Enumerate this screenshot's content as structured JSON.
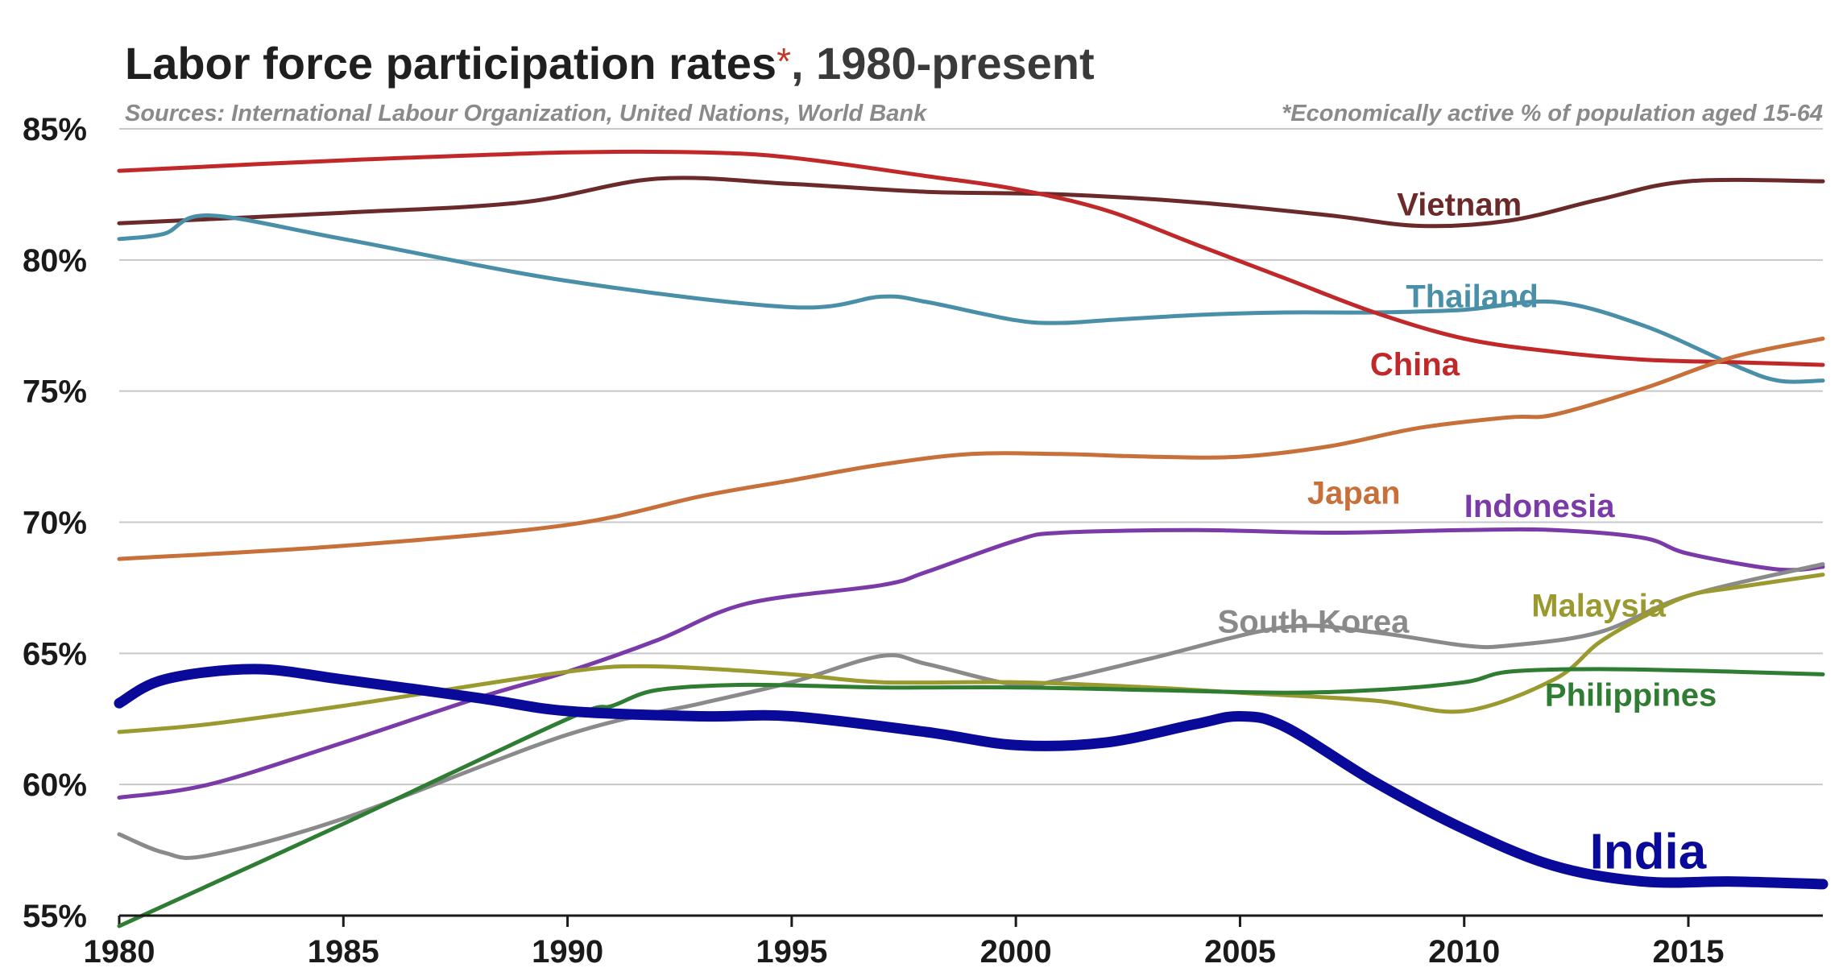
{
  "chart_data": {
    "type": "line",
    "title": "Labor force participation rates",
    "title_mark": "*",
    "title_suffix": ", 1980-present",
    "source_note": "Sources:  International Labour Organization, United Nations, World Bank",
    "footnote": "*Economically active % of population aged 15-64",
    "y_tick_labels": [
      "85%",
      "80%",
      "75%",
      "70%",
      "65%",
      "60%",
      "55%"
    ],
    "y_ticks": [
      85,
      80,
      75,
      70,
      65,
      60,
      55
    ],
    "ylim": [
      55,
      85
    ],
    "xlim": [
      1980,
      2018
    ],
    "x_ticks": [
      1980,
      1985,
      1990,
      1995,
      2000,
      2005,
      2010,
      2015
    ],
    "x_tick_labels": [
      "1980",
      "1985",
      "1990",
      "1995",
      "2000",
      "2005",
      "2010",
      "2015"
    ],
    "grid": true,
    "series": [
      {
        "name": "Vietnam",
        "color": "#6b2a2a",
        "x": [
          1980,
          1985,
          1989,
          1992,
          1995,
          1998,
          2001,
          2004,
          2007,
          2009,
          2011,
          2013,
          2015,
          2018
        ],
        "y": [
          81.4,
          81.8,
          82.2,
          83.1,
          82.9,
          82.6,
          82.5,
          82.2,
          81.7,
          81.3,
          81.5,
          82.3,
          83.0,
          83.0
        ]
      },
      {
        "name": "Thailand",
        "color": "#4a8fa8",
        "x": [
          1980,
          1981,
          1982,
          1985,
          1990,
          1995,
          1997,
          1998,
          2000,
          2001,
          2002,
          2004,
          2006,
          2008,
          2010,
          2012,
          2014,
          2016,
          2017,
          2018
        ],
        "y": [
          80.8,
          81.0,
          81.7,
          80.8,
          79.2,
          78.2,
          78.6,
          78.4,
          77.7,
          77.6,
          77.7,
          77.9,
          78.0,
          78.0,
          78.1,
          78.4,
          77.5,
          76.0,
          75.4,
          75.4
        ]
      },
      {
        "name": "China",
        "color": "#c0282a",
        "x": [
          1980,
          1985,
          1990,
          1993,
          1995,
          1998,
          2000,
          2002,
          2004,
          2006,
          2008,
          2010,
          2012,
          2014,
          2016,
          2018
        ],
        "y": [
          83.4,
          83.8,
          84.1,
          84.1,
          83.9,
          83.2,
          82.7,
          81.9,
          80.6,
          79.3,
          78.0,
          77.0,
          76.5,
          76.2,
          76.1,
          76.0
        ]
      },
      {
        "name": "Japan",
        "color": "#c8703a",
        "x": [
          1980,
          1985,
          1990,
          1993,
          1995,
          1997,
          1999,
          2001,
          2003,
          2005,
          2007,
          2009,
          2011,
          2012,
          2014,
          2016,
          2018
        ],
        "y": [
          68.6,
          69.1,
          69.9,
          71.0,
          71.6,
          72.2,
          72.6,
          72.6,
          72.5,
          72.5,
          72.9,
          73.6,
          74.0,
          74.1,
          75.1,
          76.3,
          77.0
        ]
      },
      {
        "name": "Indonesia",
        "color": "#7a3aa8",
        "x": [
          1980,
          1982,
          1985,
          1988,
          1990,
          1992,
          1994,
          1997,
          1998,
          2000,
          2001,
          2004,
          2007,
          2010,
          2012,
          2014,
          2015,
          2017,
          2018
        ],
        "y": [
          59.5,
          60.0,
          61.6,
          63.3,
          64.3,
          65.5,
          66.9,
          67.6,
          68.1,
          69.3,
          69.6,
          69.7,
          69.6,
          69.7,
          69.7,
          69.4,
          68.8,
          68.2,
          68.3
        ]
      },
      {
        "name": "South Korea",
        "color": "#8a8a8a",
        "x": [
          1980,
          1981,
          1982,
          1985,
          1990,
          1993,
          1995,
          1997,
          1998,
          2000,
          2001,
          2003,
          2006,
          2008,
          2010,
          2011,
          2013,
          2015,
          2018
        ],
        "y": [
          58.1,
          57.4,
          57.3,
          58.7,
          61.9,
          63.1,
          63.9,
          64.9,
          64.6,
          63.8,
          64.0,
          64.8,
          66.0,
          65.8,
          65.3,
          65.3,
          65.8,
          67.2,
          68.4
        ]
      },
      {
        "name": "Malaysia",
        "color": "#9a9a30",
        "x": [
          1980,
          1982,
          1985,
          1990,
          1992,
          1995,
          1997,
          2000,
          2003,
          2005,
          2008,
          2010,
          2012,
          2013,
          2014,
          2015,
          2016,
          2018
        ],
        "y": [
          62.0,
          62.3,
          63.0,
          64.3,
          64.5,
          64.2,
          63.9,
          63.9,
          63.7,
          63.5,
          63.2,
          62.8,
          64.0,
          65.4,
          66.4,
          67.2,
          67.5,
          68.0
        ]
      },
      {
        "name": "Philippines",
        "color": "#2e7d32",
        "x": [
          1980,
          1985,
          1990,
          1991,
          1992,
          1994,
          1997,
          2000,
          2003,
          2006,
          2008,
          2010,
          2011,
          2013,
          2016,
          2018
        ],
        "y": [
          54.6,
          58.5,
          62.5,
          63.0,
          63.6,
          63.8,
          63.7,
          63.7,
          63.6,
          63.5,
          63.6,
          63.9,
          64.3,
          64.4,
          64.3,
          64.2
        ]
      },
      {
        "name": "India",
        "color": "#0a0a9a",
        "x": [
          1980,
          1981,
          1983,
          1985,
          1988,
          1990,
          1993,
          1995,
          1998,
          2000,
          2002,
          2004,
          2005,
          2006,
          2008,
          2010,
          2012,
          2014,
          2016,
          2018
        ],
        "y": [
          63.1,
          64.0,
          64.4,
          64.0,
          63.3,
          62.8,
          62.6,
          62.6,
          62.0,
          61.5,
          61.6,
          62.3,
          62.6,
          62.2,
          60.1,
          58.3,
          56.9,
          56.3,
          56.3,
          56.2
        ]
      }
    ],
    "labels": [
      {
        "text": "Vietnam",
        "color": "#6b2a2a",
        "x": 2008.5,
        "y": 81.7
      },
      {
        "text": "Thailand",
        "color": "#4a8fa8",
        "x": 2008.7,
        "y": 78.2
      },
      {
        "text": "China",
        "color": "#c0282a",
        "x": 2007.9,
        "y": 75.6
      },
      {
        "text": "Japan",
        "color": "#c8703a",
        "x": 2006.5,
        "y": 70.7
      },
      {
        "text": "Indonesia",
        "color": "#7a3aa8",
        "x": 2010.0,
        "y": 70.2
      },
      {
        "text": "South Korea",
        "color": "#8a8a8a",
        "x": 2004.5,
        "y": 65.8
      },
      {
        "text": "Malaysia",
        "color": "#9a9a30",
        "x": 2011.5,
        "y": 66.4
      },
      {
        "text": "Philippines",
        "color": "#2e7d32",
        "x": 2011.8,
        "y": 63.0
      },
      {
        "text": "India",
        "color": "#0a0a9a",
        "x": 2012.8,
        "y": 56.8,
        "big": true
      }
    ]
  }
}
